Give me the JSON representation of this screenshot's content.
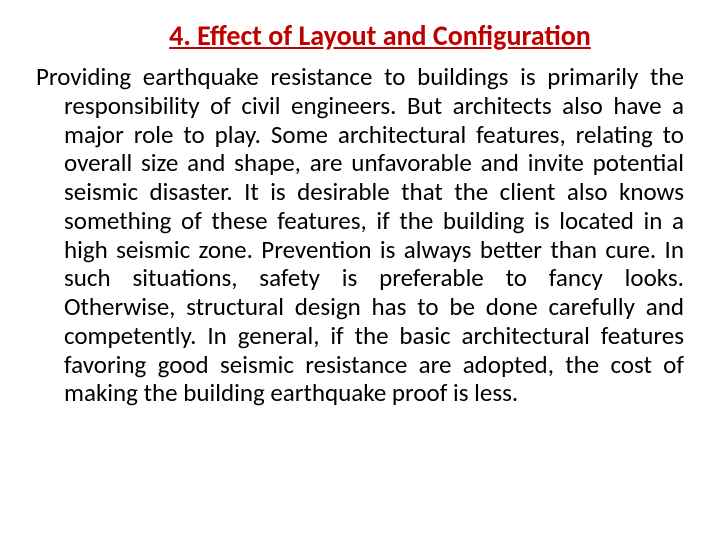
{
  "heading": {
    "text": "4. Effect of Layout and Configuration",
    "color": "#c00000",
    "fontsize": 28,
    "fontweight": "bold",
    "underline": true
  },
  "body": {
    "text": "Providing earthquake resistance to buildings is primarily the responsibility of civil engineers. But architects also have a major role to play. Some architectural features, relating to overall size and shape, are unfavorable and invite potential seismic disaster. It is desirable that the client also knows something of these features, if the building is located in a high seismic zone. Prevention is always better than cure. In such situations, safety is preferable to fancy looks. Otherwise, structural design has to be done carefully and competently. In general, if the basic architectural features favoring good seismic resistance are adopted, the cost of making the building earthquake proof is less.",
    "color": "#000000",
    "fontsize": 25
  },
  "background_color": "#ffffff"
}
